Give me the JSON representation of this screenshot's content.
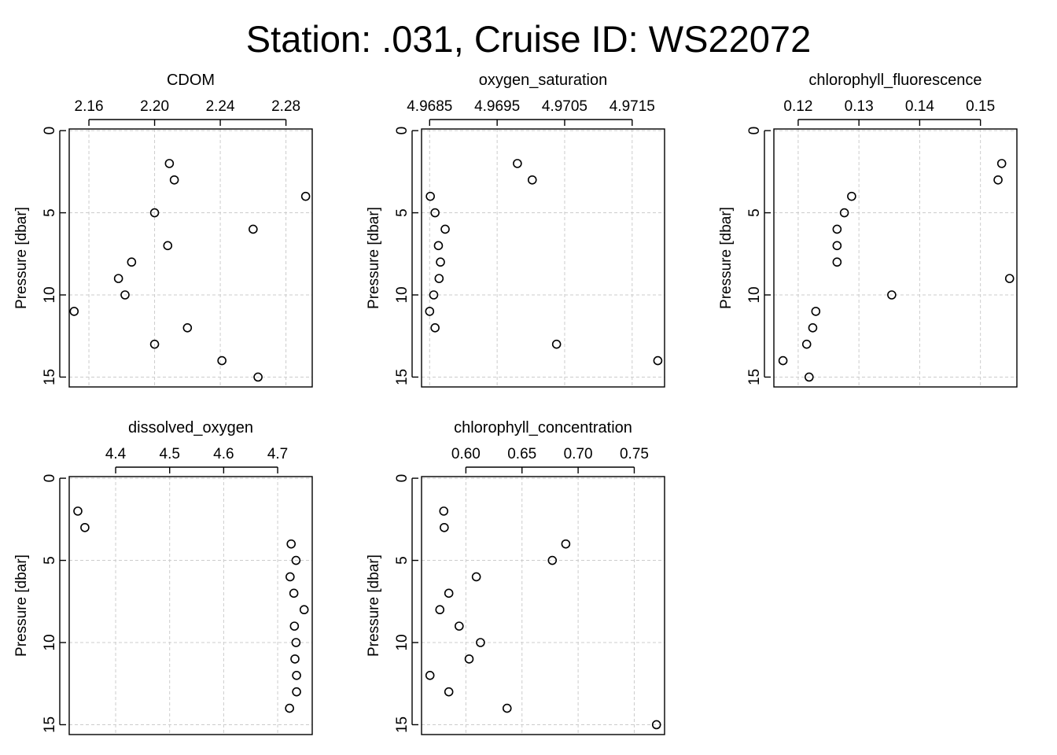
{
  "title": "Station: .031, Cruise ID: WS22072",
  "chart_data": [
    {
      "type": "scatter",
      "title": "CDOM",
      "ylabel": "Pressure [dbar]",
      "xlim": [
        2.148,
        2.296
      ],
      "xticks": [
        2.16,
        2.2,
        2.24,
        2.28
      ],
      "xtick_labels": [
        "2.16",
        "2.20",
        "2.24",
        "2.28"
      ],
      "ylim": [
        15.6,
        -0.1
      ],
      "yticks": [
        0,
        5,
        10,
        15
      ],
      "ytick_labels": [
        "0",
        "5",
        "10",
        "15"
      ],
      "grid": true,
      "x": [
        2.209,
        2.212,
        2.292,
        2.2,
        2.26,
        2.208,
        2.186,
        2.178,
        2.182,
        2.151,
        2.22,
        2.2,
        2.241,
        2.263
      ],
      "y": [
        2,
        3,
        4,
        5,
        6,
        7,
        8,
        9,
        10,
        11,
        12,
        13,
        14,
        15
      ]
    },
    {
      "type": "scatter",
      "title": "oxygen_saturation",
      "ylabel": "Pressure [dbar]",
      "xlim": [
        4.96838,
        4.97198
      ],
      "xticks": [
        4.9685,
        4.9695,
        4.9705,
        4.9715
      ],
      "xtick_labels": [
        "4.9685",
        "4.9695",
        "4.9705",
        "4.9715"
      ],
      "ylim": [
        15.6,
        -0.1
      ],
      "yticks": [
        0,
        5,
        10,
        15
      ],
      "ytick_labels": [
        "0",
        "5",
        "10",
        "15"
      ],
      "grid": true,
      "x": [
        4.9698,
        4.97002,
        4.96851,
        4.96858,
        4.96873,
        4.96863,
        4.96866,
        4.96864,
        4.96856,
        4.9685,
        4.96858,
        4.97038,
        4.97188
      ],
      "y": [
        2,
        3,
        4,
        5,
        6,
        7,
        8,
        9,
        10,
        11,
        12,
        13,
        14
      ]
    },
    {
      "type": "scatter",
      "title": "chlorophyll_fluorescence",
      "ylabel": "Pressure [dbar]",
      "xlim": [
        0.116,
        0.156
      ],
      "xticks": [
        0.12,
        0.13,
        0.14,
        0.15
      ],
      "xtick_labels": [
        "0.12",
        "0.13",
        "0.14",
        "0.15"
      ],
      "ylim": [
        15.6,
        -0.1
      ],
      "yticks": [
        0,
        5,
        10,
        15
      ],
      "ytick_labels": [
        "0",
        "5",
        "10",
        "15"
      ],
      "grid": true,
      "x": [
        0.1535,
        0.1529,
        0.1288,
        0.1276,
        0.1264,
        0.1264,
        0.1264,
        0.1548,
        0.1354,
        0.1229,
        0.1224,
        0.1214,
        0.1175,
        0.1218
      ],
      "y": [
        2,
        3,
        4,
        5,
        6,
        7,
        8,
        9,
        10,
        11,
        12,
        13,
        14,
        15
      ]
    },
    {
      "type": "scatter",
      "title": "dissolved_oxygen",
      "ylabel": "Pressure [dbar]",
      "xlim": [
        4.314,
        4.764
      ],
      "xticks": [
        4.4,
        4.5,
        4.6,
        4.7
      ],
      "xtick_labels": [
        "4.4",
        "4.5",
        "4.6",
        "4.7"
      ],
      "ylim": [
        15.6,
        -0.1
      ],
      "yticks": [
        0,
        5,
        10,
        15
      ],
      "ytick_labels": [
        "0",
        "5",
        "10",
        "15"
      ],
      "grid": true,
      "x": [
        4.33,
        4.343,
        4.725,
        4.734,
        4.723,
        4.73,
        4.749,
        4.731,
        4.734,
        4.732,
        4.735,
        4.735,
        4.722
      ],
      "y": [
        2,
        3,
        4,
        5,
        6,
        7,
        8,
        9,
        10,
        11,
        12,
        13,
        14
      ]
    },
    {
      "type": "scatter",
      "title": "chlorophyll_concentration",
      "ylabel": "Pressure [dbar]",
      "xlim": [
        0.5605,
        0.777
      ],
      "xticks": [
        0.6,
        0.65,
        0.7,
        0.75
      ],
      "xtick_labels": [
        "0.60",
        "0.65",
        "0.70",
        "0.75"
      ],
      "ylim": [
        15.6,
        -0.1
      ],
      "yticks": [
        0,
        5,
        10,
        15
      ],
      "ytick_labels": [
        "0",
        "5",
        "10",
        "15"
      ],
      "grid": true,
      "x": [
        0.5803,
        0.5807,
        0.689,
        0.677,
        0.6093,
        0.5848,
        0.5768,
        0.594,
        0.613,
        0.6029,
        0.568,
        0.5848,
        0.6367,
        0.7698
      ],
      "y": [
        2,
        3,
        4,
        5,
        6,
        7,
        8,
        9,
        10,
        11,
        12,
        13,
        14,
        15
      ]
    }
  ]
}
